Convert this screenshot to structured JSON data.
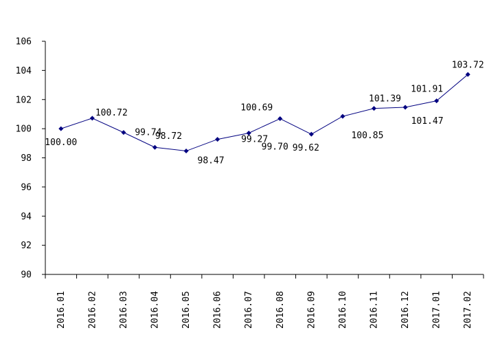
{
  "chart_data": {
    "type": "line",
    "title": "",
    "xlabel": "",
    "ylabel": "",
    "ylim": [
      90,
      106
    ],
    "yticks": [
      90,
      92,
      94,
      96,
      98,
      100,
      102,
      104,
      106
    ],
    "categories": [
      "2016.01",
      "2016.02",
      "2016.03",
      "2016.04",
      "2016.05",
      "2016.06",
      "2016.07",
      "2016.08",
      "2016.09",
      "2016.10",
      "2016.11",
      "2016.12",
      "2017.01",
      "2017.02"
    ],
    "series": [
      {
        "values": [
          100.0,
          100.72,
          99.74,
          98.72,
          98.47,
          99.27,
          99.7,
          100.69,
          99.62,
          100.85,
          101.39,
          101.47,
          101.91,
          103.72
        ],
        "data_labels": [
          "100.00",
          "100.72",
          "99.74",
          "98.72",
          "98.47",
          "99.27",
          "99.70",
          "100.69",
          "99.62",
          "100.85",
          "101.39",
          "101.47",
          "101.91",
          "103.72"
        ],
        "color": "#000080",
        "marker": "diamond"
      }
    ],
    "grid": false,
    "legend": "none"
  }
}
